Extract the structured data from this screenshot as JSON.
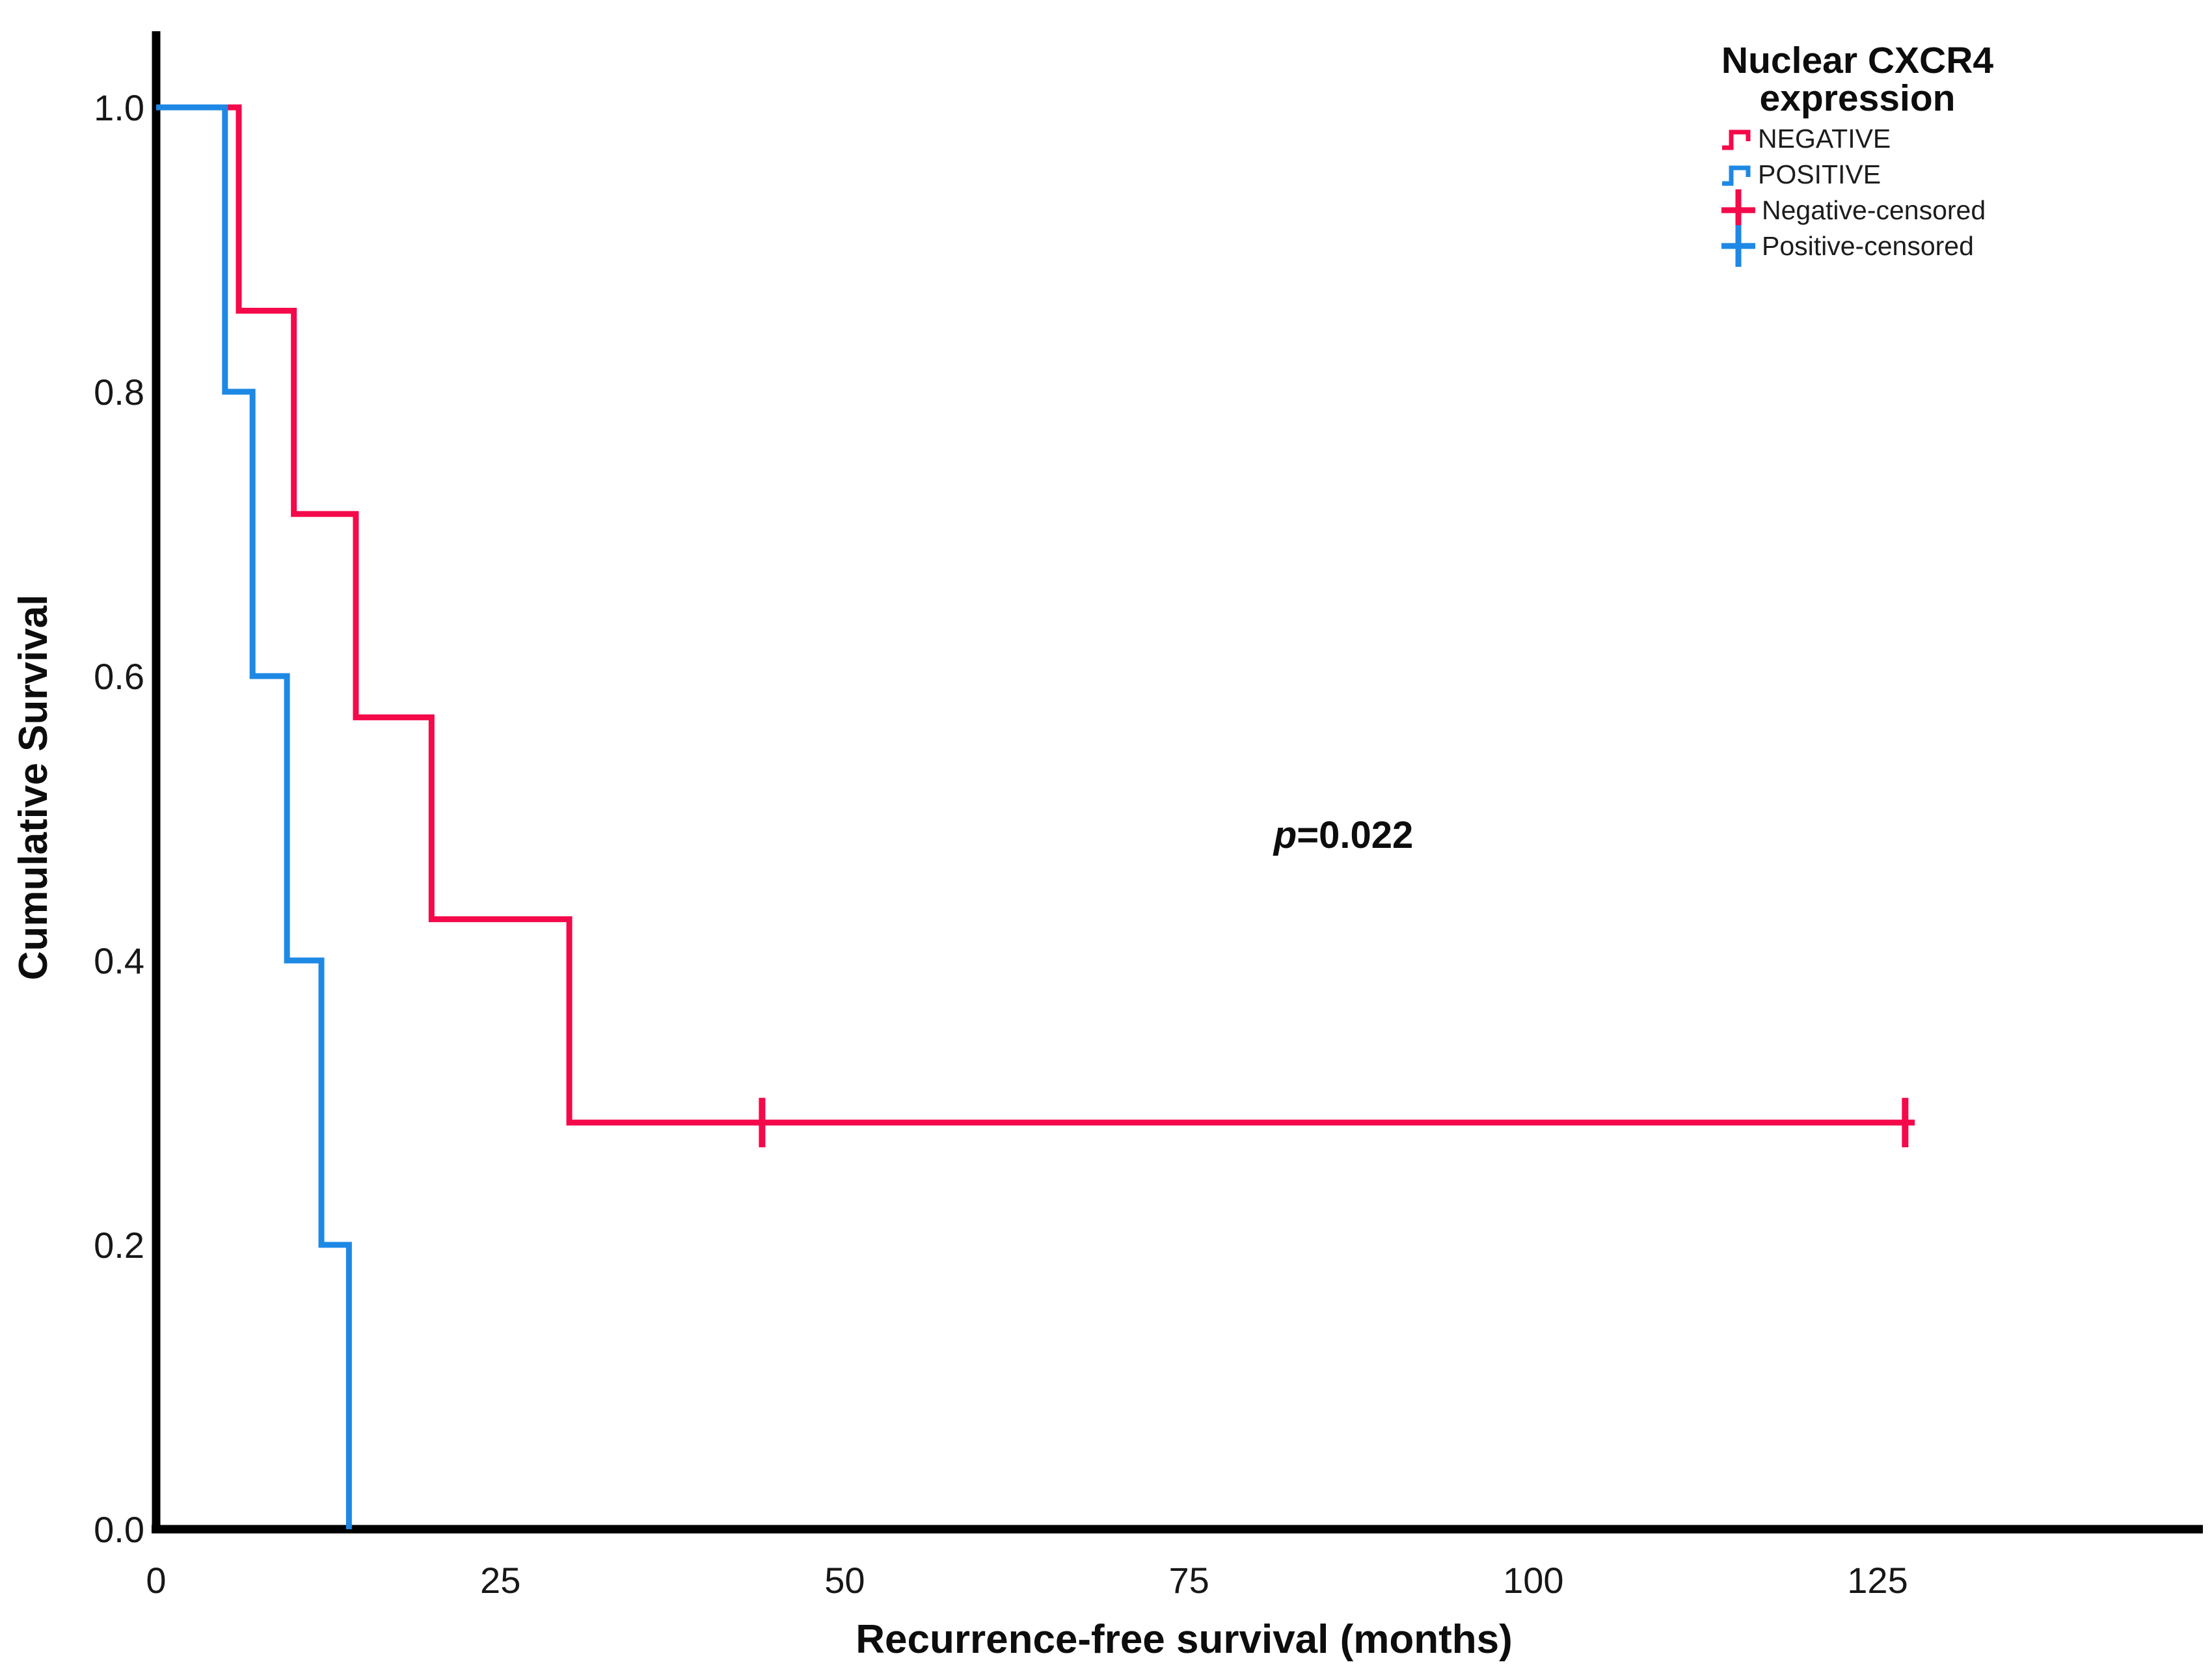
{
  "figure": {
    "background_color": "#ffffff",
    "axis_color": "#000000",
    "p_annotation": {
      "prefix": "p",
      "rest": "=0.022"
    },
    "x_axis": {
      "title": "Recurrence-free survival (months)"
    },
    "y_axis": {
      "title": "Cumulative Survival"
    },
    "legend": {
      "title_line1": "Nuclear CXCR4",
      "title_line2": "expression",
      "entries": [
        {
          "label": "NEGATIVE",
          "symbol": "step",
          "color": "#F4094A"
        },
        {
          "label": "POSITIVE",
          "symbol": "step",
          "color": "#1E88E5"
        },
        {
          "label": "Negative-censored",
          "symbol": "plus",
          "color": "#F4094A"
        },
        {
          "label": "Positive-censored",
          "symbol": "plus",
          "color": "#1E88E5"
        }
      ]
    }
  },
  "chart_data": {
    "type": "line",
    "subtype": "kaplan-meier-step-function",
    "title": "",
    "xlabel": "Recurrence-free survival (months)",
    "ylabel": "Cumulative Survival",
    "xlim": [
      0,
      148
    ],
    "ylim": [
      0.0,
      1.0
    ],
    "xticks": [
      0,
      25,
      50,
      75,
      100,
      125
    ],
    "yticks": [
      {
        "label": "0.0",
        "v": 0.0
      },
      {
        "label": "0.2",
        "v": 0.2
      },
      {
        "label": "0.4",
        "v": 0.4
      },
      {
        "label": "0.6",
        "v": 0.6
      },
      {
        "label": "0.8",
        "v": 0.8
      },
      {
        "label": "1.0",
        "v": 1.0
      }
    ],
    "grid": false,
    "legend_position": "top-right",
    "annotations": [
      {
        "text": "p=0.022",
        "x_months": 86,
        "y_survival": 0.48
      }
    ],
    "series": [
      {
        "name": "NEGATIVE",
        "color": "#F4094A",
        "steps_months_survival": [
          [
            0,
            1.0
          ],
          [
            6,
            0.857
          ],
          [
            10,
            0.714
          ],
          [
            14.5,
            0.571
          ],
          [
            20,
            0.429
          ],
          [
            30,
            0.286
          ]
        ],
        "line_end_month": 127.7,
        "censored_marks_months_survival": [
          [
            44,
            0.286
          ],
          [
            127,
            0.286
          ]
        ]
      },
      {
        "name": "POSITIVE",
        "color": "#1E88E5",
        "steps_months_survival": [
          [
            0,
            1.0
          ],
          [
            5,
            0.8
          ],
          [
            7,
            0.6
          ],
          [
            9.5,
            0.4
          ],
          [
            12,
            0.2
          ],
          [
            14,
            0.0
          ]
        ],
        "line_end_month": 14,
        "censored_marks_months_survival": []
      }
    ]
  }
}
